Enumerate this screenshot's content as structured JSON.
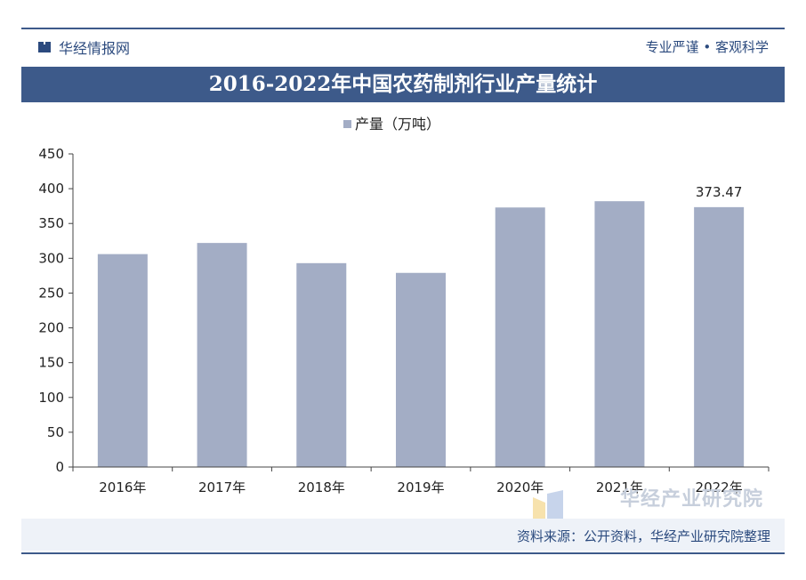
{
  "header": {
    "brand": "华经情报网",
    "slogan": "专业严谨 • 客观科学"
  },
  "title": "2016-2022年中国农药制剂行业产量统计",
  "source": "资料来源：公开资料，华经产业研究院整理",
  "watermark": "华经产业研究院",
  "colors": {
    "primary": "#3d5a8a",
    "bar": "#a3adc5",
    "source_bg": "#eef2f8"
  },
  "chart_data": {
    "type": "bar",
    "categories": [
      "2016年",
      "2017年",
      "2018年",
      "2019年",
      "2020年",
      "2021年",
      "2022年"
    ],
    "series": [
      {
        "name": "产量（万吨）",
        "values": [
          306,
          322,
          293,
          279,
          373,
          382,
          373.47
        ]
      }
    ],
    "data_labels": [
      {
        "index": 6,
        "text": "373.47"
      }
    ],
    "ylim": [
      0,
      450
    ],
    "yticks": [
      0,
      50,
      100,
      150,
      200,
      250,
      300,
      350,
      400,
      450
    ],
    "legend": "top-center",
    "grid": false
  }
}
